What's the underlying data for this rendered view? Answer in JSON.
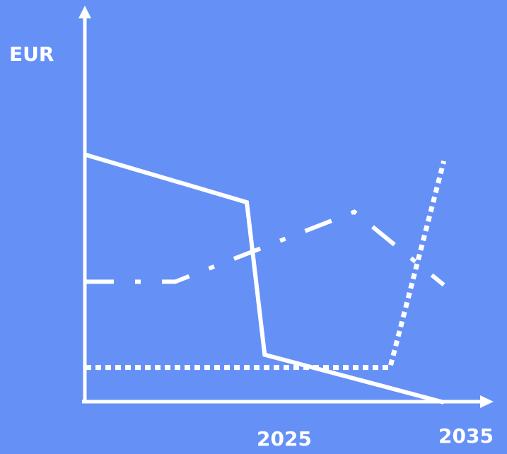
{
  "chart_data": {
    "type": "line",
    "title": "",
    "xlabel": "",
    "ylabel": "EUR",
    "x_ticks": [
      {
        "label": "2025",
        "value": 2025
      },
      {
        "label": "2035",
        "value": 2035
      }
    ],
    "xlim": [
      2015,
      2036
    ],
    "ylim": [
      0,
      100
    ],
    "grid": false,
    "legend": "none",
    "colors": {
      "background": "#6590f5",
      "foreground": "#ffffff"
    },
    "series": [
      {
        "style": "solid",
        "points": [
          [
            2015,
            78
          ],
          [
            2024,
            63
          ],
          [
            2025,
            15
          ],
          [
            2035,
            0
          ]
        ]
      },
      {
        "style": "dash-dot",
        "points": [
          [
            2015,
            38
          ],
          [
            2020,
            38
          ],
          [
            2030,
            60
          ],
          [
            2035,
            37
          ]
        ]
      },
      {
        "style": "dotted",
        "points": [
          [
            2015,
            11
          ],
          [
            2032,
            11
          ],
          [
            2035,
            76
          ]
        ]
      }
    ]
  }
}
